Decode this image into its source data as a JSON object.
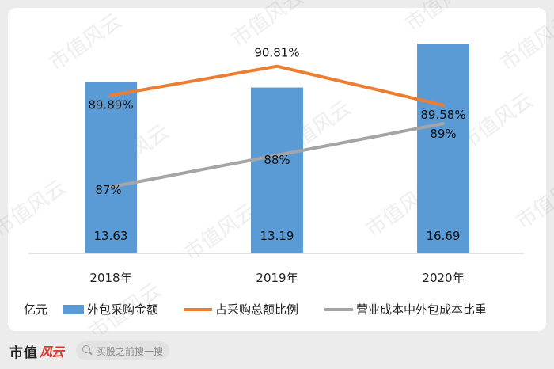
{
  "chart_data": {
    "type": "bar",
    "categories": [
      "2018年",
      "2019年",
      "2020年"
    ],
    "unit_label": "亿元",
    "series": [
      {
        "name": "外包采购金额",
        "type": "bar",
        "values": [
          13.63,
          13.19,
          16.69
        ],
        "color": "#5b9bd5"
      },
      {
        "name": "占采购总额比例",
        "type": "line",
        "values": [
          89.89,
          90.81,
          89.58
        ],
        "color": "#ed7d31"
      },
      {
        "name": "营业成本中外包成本比重",
        "type": "line",
        "values": [
          87,
          88,
          89
        ],
        "color": "#a5a5a5"
      }
    ],
    "data_labels": {
      "bar": [
        "13.63",
        "13.19",
        "16.69"
      ],
      "line1": [
        "89.89%",
        "90.81%",
        "89.58%"
      ],
      "line2": [
        "87%",
        "88%",
        "89%"
      ]
    },
    "legend_position": "bottom",
    "grid": false
  },
  "watermark": "市值风云",
  "footer": {
    "logo_text": "市值",
    "logo_mark": "风云",
    "search_placeholder": "买股之前搜一搜"
  }
}
